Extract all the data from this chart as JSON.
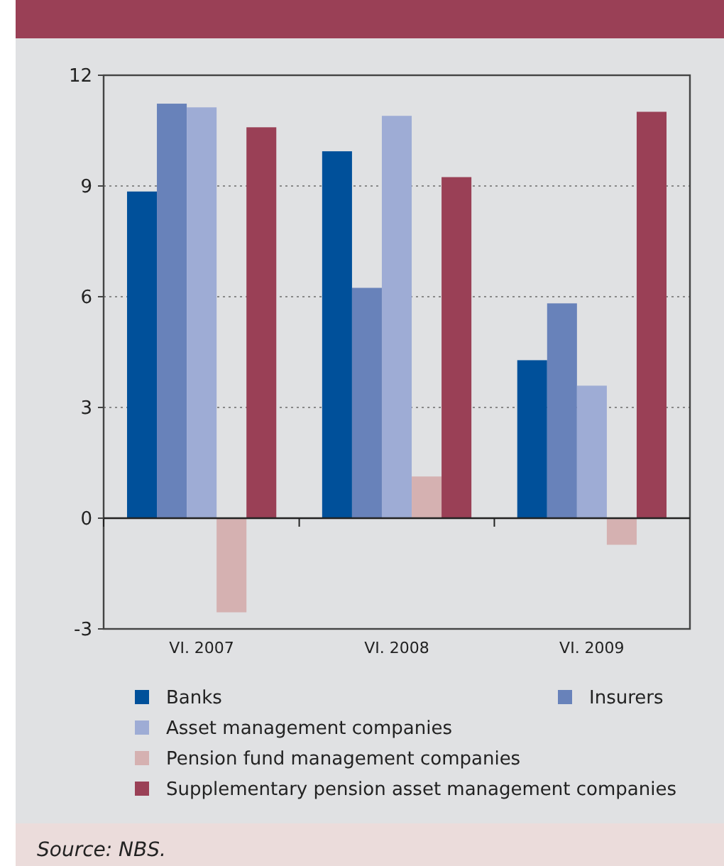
{
  "chart_data": {
    "type": "bar",
    "categories": [
      "VI. 2007",
      "VI. 2008",
      "VI. 2009"
    ],
    "series": [
      {
        "name": "Banks",
        "color": "#00509a",
        "values": [
          8.85,
          9.94,
          4.28
        ]
      },
      {
        "name": "Insurers",
        "color": "#6882ba",
        "values": [
          11.23,
          6.24,
          5.82
        ]
      },
      {
        "name": "Asset management companies",
        "color": "#9eacd5",
        "values": [
          11.13,
          10.9,
          3.59
        ]
      },
      {
        "name": "Pension fund management companies",
        "color": "#d5b1b1",
        "values": [
          -2.55,
          1.13,
          -0.72
        ]
      },
      {
        "name": "Supplementary pension asset management companies",
        "color": "#9a4056",
        "values": [
          10.59,
          9.24,
          11.01
        ]
      }
    ],
    "ylim": [
      -3,
      12
    ],
    "yticks": [
      -3,
      0,
      3,
      6,
      9,
      12
    ],
    "grid": "y",
    "legend": "bottom",
    "annotations": [
      "Source: NBS."
    ]
  }
}
